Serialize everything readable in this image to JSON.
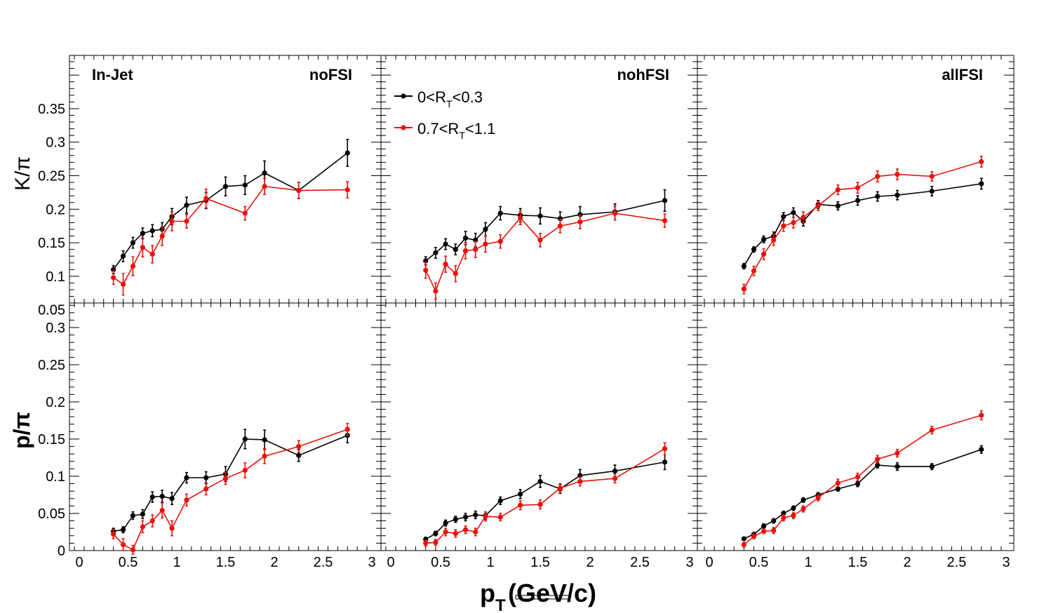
{
  "colors": {
    "series_black": "#000000",
    "series_red": "#e8120b",
    "axis": "#000000"
  },
  "figure": {
    "xlabel_main": "p",
    "xlabel_sub": "T",
    "xlabel_rest": "(GeV/c)",
    "ylabel_top": "K/π",
    "ylabel_bottom": "p/π",
    "in_jet_label": "In-Jet",
    "legend": [
      {
        "pre": "0<R",
        "sub": "T",
        "post": "<0.3"
      },
      {
        "pre": "0.7<R",
        "sub": "T",
        "post": "<1.1"
      }
    ],
    "panel_titles": [
      "noFSI",
      "nohFSI",
      "allFSI"
    ]
  },
  "chart_data": [
    {
      "type": "line",
      "panel": "noFSI",
      "ylabel": "K/π",
      "xlim": [
        -0.1,
        3.05
      ],
      "ylim": [
        0.01,
        0.385
      ],
      "yticks": [
        "0.05",
        "0.1",
        "0.15",
        "0.2",
        "0.25",
        "0.3",
        "0.35"
      ],
      "x": [
        0.35,
        0.45,
        0.55,
        0.65,
        0.75,
        0.85,
        0.95,
        1.1,
        1.3,
        1.5,
        1.7,
        1.9,
        2.25,
        2.75
      ],
      "series": [
        {
          "name": "0<R_T<0.3",
          "color": "#000000",
          "values": [
            0.11,
            0.13,
            0.15,
            0.164,
            0.168,
            0.17,
            0.189,
            0.206,
            0.213,
            0.234,
            0.236,
            0.254,
            0.228,
            0.284
          ],
          "errors": [
            0.006,
            0.008,
            0.008,
            0.008,
            0.009,
            0.01,
            0.012,
            0.012,
            0.012,
            0.014,
            0.014,
            0.018,
            0.012,
            0.02
          ]
        },
        {
          "name": "0.7<R_T<1.1",
          "color": "#e8120b",
          "x": [
            0.35,
            0.45,
            0.55,
            0.65,
            0.75,
            0.85,
            0.95,
            1.1,
            1.3,
            1.7,
            1.9,
            2.25,
            2.75
          ],
          "values": [
            0.098,
            0.088,
            0.115,
            0.143,
            0.133,
            0.16,
            0.182,
            0.182,
            0.216,
            0.194,
            0.234,
            0.228,
            0.229
          ],
          "errors": [
            0.01,
            0.016,
            0.014,
            0.014,
            0.013,
            0.014,
            0.014,
            0.01,
            0.014,
            0.01,
            0.012,
            0.012,
            0.012
          ]
        }
      ]
    },
    {
      "type": "line",
      "panel": "nohFSI",
      "ylabel": "K/π",
      "xlim": [
        -0.1,
        3.05
      ],
      "ylim": [
        0.01,
        0.385
      ],
      "x": [
        0.35,
        0.45,
        0.55,
        0.65,
        0.75,
        0.85,
        0.95,
        1.1,
        1.3,
        1.5,
        1.7,
        1.9,
        2.25,
        2.75
      ],
      "series": [
        {
          "name": "0<R_T<0.3",
          "color": "#000000",
          "values": [
            0.123,
            0.135,
            0.148,
            0.14,
            0.157,
            0.154,
            0.17,
            0.194,
            0.191,
            0.19,
            0.186,
            0.192,
            0.196,
            0.213
          ],
          "errors": [
            0.006,
            0.008,
            0.008,
            0.008,
            0.01,
            0.01,
            0.01,
            0.01,
            0.01,
            0.012,
            0.01,
            0.012,
            0.012,
            0.016
          ]
        },
        {
          "name": "0.7<R_T<1.1",
          "color": "#e8120b",
          "values": [
            0.109,
            0.078,
            0.118,
            0.104,
            0.138,
            0.14,
            0.148,
            0.152,
            0.187,
            0.154,
            0.175,
            0.181,
            0.194,
            0.183
          ],
          "errors": [
            0.012,
            0.012,
            0.012,
            0.012,
            0.012,
            0.012,
            0.012,
            0.01,
            0.01,
            0.01,
            0.01,
            0.01,
            0.01,
            0.01
          ]
        }
      ]
    },
    {
      "type": "line",
      "panel": "allFSI",
      "ylabel": "K/π",
      "xlim": [
        -0.1,
        3.05
      ],
      "ylim": [
        0.01,
        0.385
      ],
      "x": [
        0.35,
        0.45,
        0.55,
        0.65,
        0.75,
        0.85,
        0.95,
        1.1,
        1.3,
        1.5,
        1.7,
        1.9,
        2.25,
        2.75
      ],
      "series": [
        {
          "name": "0<R_T<0.3",
          "color": "#000000",
          "values": [
            0.115,
            0.14,
            0.155,
            0.16,
            0.189,
            0.195,
            0.182,
            0.207,
            0.205,
            0.213,
            0.219,
            0.221,
            0.227,
            0.238
          ],
          "errors": [
            0.004,
            0.004,
            0.005,
            0.006,
            0.006,
            0.007,
            0.007,
            0.006,
            0.006,
            0.007,
            0.007,
            0.007,
            0.007,
            0.008
          ]
        },
        {
          "name": "0.7<R_T<1.1",
          "color": "#e8120b",
          "values": [
            0.081,
            0.108,
            0.133,
            0.154,
            0.175,
            0.18,
            0.188,
            0.205,
            0.229,
            0.232,
            0.249,
            0.252,
            0.249,
            0.271
          ],
          "errors": [
            0.007,
            0.007,
            0.008,
            0.008,
            0.008,
            0.008,
            0.008,
            0.007,
            0.007,
            0.008,
            0.008,
            0.008,
            0.007,
            0.008
          ]
        }
      ]
    },
    {
      "type": "line",
      "panel": "noFSI",
      "ylabel": "p/π",
      "xlim": [
        -0.1,
        3.05
      ],
      "ylim": [
        0,
        0.335
      ],
      "yticks": [
        "0",
        "0.05",
        "0.1",
        "0.15",
        "0.2",
        "0.25",
        "0.3"
      ],
      "xlabel": "p_T (GeV/c)",
      "xticks": [
        "0",
        "0.5",
        "1",
        "1.5",
        "2",
        "2.5",
        "3"
      ],
      "x": [
        0.35,
        0.45,
        0.55,
        0.65,
        0.75,
        0.85,
        0.95,
        1.1,
        1.3,
        1.5,
        1.7,
        1.9,
        2.25,
        2.75
      ],
      "series": [
        {
          "name": "0<R_T<0.3",
          "color": "#000000",
          "values": [
            0.026,
            0.028,
            0.047,
            0.049,
            0.072,
            0.073,
            0.07,
            0.098,
            0.098,
            0.103,
            0.15,
            0.149,
            0.128,
            0.155
          ],
          "errors": [
            0.004,
            0.004,
            0.005,
            0.006,
            0.007,
            0.008,
            0.008,
            0.007,
            0.008,
            0.01,
            0.013,
            0.013,
            0.008,
            0.01
          ]
        },
        {
          "name": "0.7<R_T<1.1",
          "color": "#e8120b",
          "values": [
            0.022,
            0.008,
            0.001,
            0.032,
            0.04,
            0.054,
            0.03,
            0.068,
            0.083,
            0.097,
            0.108,
            0.127,
            0.14,
            0.163
          ],
          "errors": [
            0.006,
            0.008,
            0.006,
            0.008,
            0.008,
            0.01,
            0.01,
            0.008,
            0.008,
            0.008,
            0.01,
            0.01,
            0.008,
            0.008
          ]
        }
      ]
    },
    {
      "type": "line",
      "panel": "nohFSI",
      "ylabel": "p/π",
      "xlim": [
        -0.1,
        3.05
      ],
      "ylim": [
        0,
        0.335
      ],
      "xticks": [
        "0",
        "0.5",
        "1",
        "1.5",
        "2",
        "2.5",
        "3"
      ],
      "x": [
        0.35,
        0.45,
        0.55,
        0.65,
        0.75,
        0.85,
        0.95,
        1.1,
        1.3,
        1.5,
        1.7,
        1.9,
        2.25,
        2.75
      ],
      "series": [
        {
          "name": "0<R_T<0.3",
          "color": "#000000",
          "values": [
            0.015,
            0.023,
            0.037,
            0.042,
            0.045,
            0.048,
            0.047,
            0.067,
            0.076,
            0.093,
            0.083,
            0.101,
            0.107,
            0.119
          ],
          "errors": [
            0.003,
            0.003,
            0.004,
            0.004,
            0.005,
            0.005,
            0.005,
            0.005,
            0.006,
            0.008,
            0.006,
            0.008,
            0.008,
            0.01
          ]
        },
        {
          "name": "0.7<R_T<1.1",
          "color": "#e8120b",
          "values": [
            0.01,
            0.011,
            0.025,
            0.023,
            0.028,
            0.025,
            0.046,
            0.045,
            0.061,
            0.062,
            0.084,
            0.093,
            0.097,
            0.137
          ],
          "errors": [
            0.004,
            0.004,
            0.005,
            0.005,
            0.005,
            0.005,
            0.006,
            0.005,
            0.006,
            0.006,
            0.006,
            0.006,
            0.006,
            0.008
          ]
        }
      ]
    },
    {
      "type": "line",
      "panel": "allFSI",
      "ylabel": "p/π",
      "xlim": [
        -0.1,
        3.05
      ],
      "ylim": [
        0,
        0.335
      ],
      "xticks": [
        "0",
        "0.5",
        "1",
        "1.5",
        "2",
        "2.5",
        "3"
      ],
      "x": [
        0.35,
        0.45,
        0.55,
        0.65,
        0.75,
        0.85,
        0.95,
        1.1,
        1.3,
        1.5,
        1.7,
        1.9,
        2.25,
        2.75
      ],
      "series": [
        {
          "name": "0<R_T<0.3",
          "color": "#000000",
          "values": [
            0.016,
            0.022,
            0.033,
            0.04,
            0.05,
            0.057,
            0.068,
            0.075,
            0.083,
            0.09,
            0.115,
            0.113,
            0.113,
            0.136
          ],
          "errors": [
            0.002,
            0.002,
            0.003,
            0.003,
            0.003,
            0.003,
            0.003,
            0.003,
            0.003,
            0.004,
            0.004,
            0.005,
            0.004,
            0.005
          ]
        },
        {
          "name": "0.7<R_T<1.1",
          "color": "#e8120b",
          "values": [
            0.008,
            0.019,
            0.026,
            0.027,
            0.044,
            0.047,
            0.056,
            0.071,
            0.091,
            0.099,
            0.123,
            0.131,
            0.162,
            0.182
          ],
          "errors": [
            0.003,
            0.003,
            0.003,
            0.004,
            0.004,
            0.004,
            0.004,
            0.004,
            0.005,
            0.005,
            0.005,
            0.005,
            0.005,
            0.006
          ]
        }
      ]
    }
  ]
}
